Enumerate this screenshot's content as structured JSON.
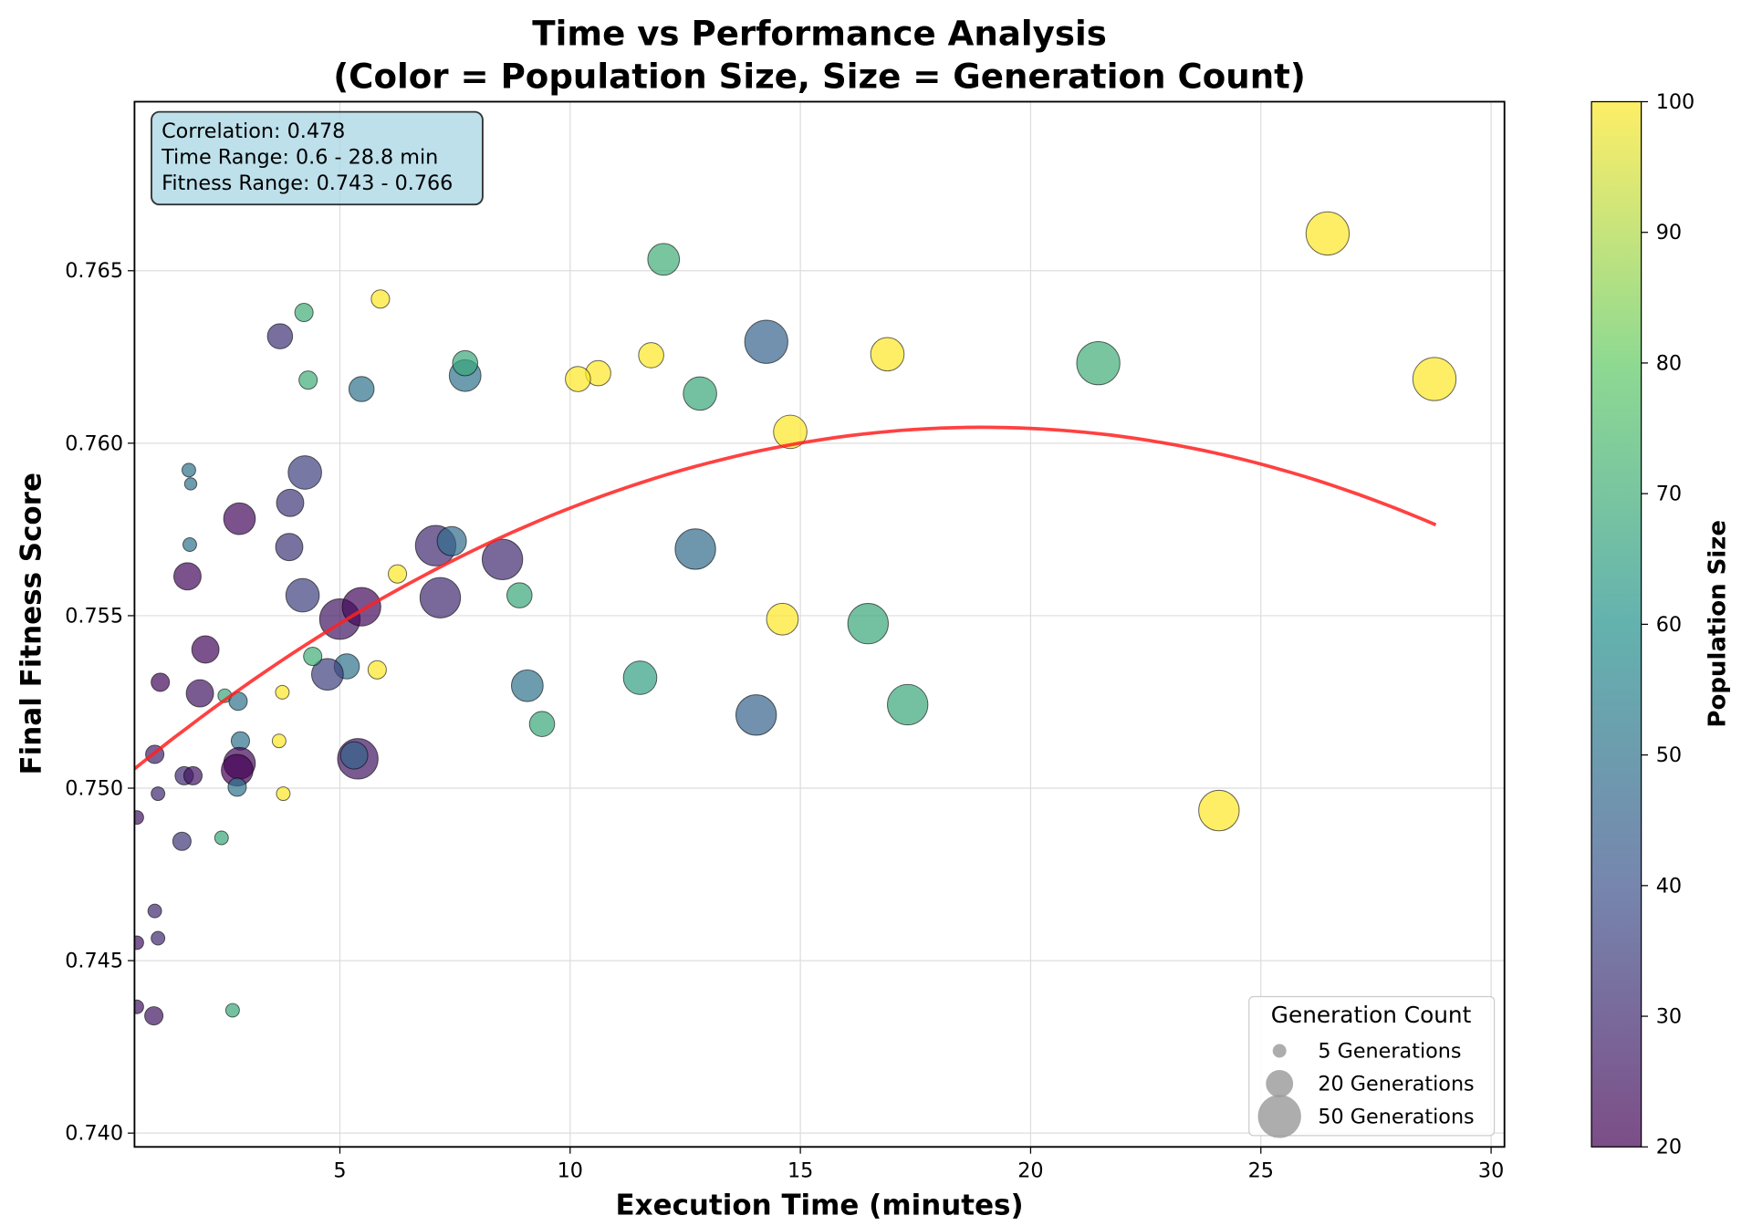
{
  "chart_data": {
    "type": "scatter",
    "title": "Time vs Performance Analysis",
    "subtitle": "(Color = Population Size, Size = Generation Count)",
    "xlabel": "Execution Time (minutes)",
    "ylabel": "Final Fitness Score",
    "xlim": [
      0.54,
      30.29
    ],
    "ylim": [
      0.7396,
      0.7699
    ],
    "xticks": [
      5,
      10,
      15,
      20,
      25,
      30
    ],
    "xtick_labels": [
      "5",
      "10",
      "15",
      "20",
      "25",
      "30"
    ],
    "yticks": [
      0.74,
      0.745,
      0.75,
      0.755,
      0.76,
      0.765
    ],
    "ytick_labels": [
      "0.740",
      "0.745",
      "0.750",
      "0.755",
      "0.760",
      "0.765"
    ],
    "grid": true,
    "annotation": [
      "Correlation: 0.478",
      "Time Range: 0.6 - 28.8 min",
      "Fitness Range: 0.743 - 0.766"
    ],
    "trend": {
      "type": "quadratic",
      "a": 0.74997,
      "b": 0.001107,
      "c": -2.92e-05,
      "x_range": [
        0.54,
        28.8
      ],
      "color": "#ff2020"
    },
    "colorbar": {
      "label": "Population Size",
      "range": [
        20,
        100
      ],
      "ticks": [
        20,
        30,
        40,
        50,
        60,
        70,
        80,
        90,
        100
      ],
      "tick_labels": [
        "20",
        "30",
        "40",
        "50",
        "60",
        "70",
        "80",
        "90",
        "100"
      ],
      "colormap": "viridis"
    },
    "legend": {
      "title": "Generation Count",
      "placement": "lower-right",
      "entries": [
        {
          "label": "5 Generations",
          "gen": 5
        },
        {
          "label": "20 Generations",
          "gen": 20
        },
        {
          "label": "50 Generations",
          "gen": 50
        }
      ]
    },
    "points": [
      {
        "x": 26.45,
        "y": 0.76608,
        "pop": 100,
        "gen": 50
      },
      {
        "x": 12.03,
        "y": 0.76533,
        "pop": 70,
        "gen": 27
      },
      {
        "x": 14.26,
        "y": 0.76294,
        "pop": 45,
        "gen": 50
      },
      {
        "x": 16.89,
        "y": 0.76258,
        "pop": 100,
        "gen": 30
      },
      {
        "x": 21.47,
        "y": 0.76232,
        "pop": 70,
        "gen": 50
      },
      {
        "x": 28.77,
        "y": 0.76186,
        "pop": 100,
        "gen": 50
      },
      {
        "x": 12.82,
        "y": 0.76144,
        "pop": 68,
        "gen": 30
      },
      {
        "x": 14.78,
        "y": 0.76033,
        "pop": 100,
        "gen": 30
      },
      {
        "x": 10.61,
        "y": 0.76203,
        "pop": 100,
        "gen": 17
      },
      {
        "x": 10.17,
        "y": 0.76186,
        "pop": 100,
        "gen": 17
      },
      {
        "x": 11.76,
        "y": 0.76255,
        "pop": 100,
        "gen": 17
      },
      {
        "x": 7.72,
        "y": 0.76196,
        "pop": 50,
        "gen": 27
      },
      {
        "x": 7.72,
        "y": 0.76232,
        "pop": 68,
        "gen": 17
      },
      {
        "x": 5.47,
        "y": 0.76157,
        "pop": 50,
        "gen": 17
      },
      {
        "x": 3.7,
        "y": 0.7631,
        "pop": 32,
        "gen": 17
      },
      {
        "x": 4.22,
        "y": 0.76379,
        "pop": 70,
        "gen": 9
      },
      {
        "x": 4.31,
        "y": 0.76183,
        "pop": 70,
        "gen": 9
      },
      {
        "x": 5.88,
        "y": 0.76418,
        "pop": 100,
        "gen": 9
      },
      {
        "x": 12.72,
        "y": 0.75693,
        "pop": 48,
        "gen": 44
      },
      {
        "x": 16.47,
        "y": 0.75477,
        "pop": 68,
        "gen": 44
      },
      {
        "x": 17.33,
        "y": 0.75242,
        "pop": 68,
        "gen": 44
      },
      {
        "x": 24.09,
        "y": 0.74935,
        "pop": 100,
        "gen": 44
      },
      {
        "x": 14.61,
        "y": 0.7549,
        "pop": 100,
        "gen": 27
      },
      {
        "x": 14.04,
        "y": 0.75212,
        "pop": 45,
        "gen": 44
      },
      {
        "x": 11.52,
        "y": 0.7532,
        "pop": 65,
        "gen": 30
      },
      {
        "x": 9.07,
        "y": 0.75297,
        "pop": 50,
        "gen": 27
      },
      {
        "x": 9.39,
        "y": 0.75186,
        "pop": 68,
        "gen": 17
      },
      {
        "x": 8.9,
        "y": 0.75559,
        "pop": 68,
        "gen": 17
      },
      {
        "x": 8.53,
        "y": 0.75663,
        "pop": 30,
        "gen": 44
      },
      {
        "x": 7.08,
        "y": 0.75703,
        "pop": 30,
        "gen": 44
      },
      {
        "x": 7.43,
        "y": 0.75716,
        "pop": 48,
        "gen": 23
      },
      {
        "x": 7.18,
        "y": 0.75552,
        "pop": 30,
        "gen": 44
      },
      {
        "x": 6.25,
        "y": 0.75621,
        "pop": 100,
        "gen": 9
      },
      {
        "x": 5.81,
        "y": 0.75343,
        "pop": 100,
        "gen": 9
      },
      {
        "x": 5.0,
        "y": 0.7549,
        "pop": 25,
        "gen": 44
      },
      {
        "x": 5.47,
        "y": 0.75526,
        "pop": 22,
        "gen": 40
      },
      {
        "x": 5.39,
        "y": 0.75085,
        "pop": 25,
        "gen": 44
      },
      {
        "x": 5.31,
        "y": 0.75095,
        "pop": 45,
        "gen": 20
      },
      {
        "x": 5.15,
        "y": 0.75353,
        "pop": 50,
        "gen": 17
      },
      {
        "x": 4.73,
        "y": 0.7533,
        "pop": 35,
        "gen": 27
      },
      {
        "x": 4.41,
        "y": 0.75382,
        "pop": 70,
        "gen": 9
      },
      {
        "x": 4.19,
        "y": 0.75559,
        "pop": 35,
        "gen": 30
      },
      {
        "x": 4.24,
        "y": 0.75915,
        "pop": 35,
        "gen": 30
      },
      {
        "x": 3.92,
        "y": 0.75827,
        "pop": 33,
        "gen": 20
      },
      {
        "x": 3.9,
        "y": 0.75699,
        "pop": 33,
        "gen": 20
      },
      {
        "x": 2.82,
        "y": 0.75781,
        "pop": 22,
        "gen": 27
      },
      {
        "x": 1.69,
        "y": 0.75614,
        "pop": 22,
        "gen": 20
      },
      {
        "x": 2.08,
        "y": 0.75402,
        "pop": 22,
        "gen": 20
      },
      {
        "x": 1.96,
        "y": 0.75275,
        "pop": 25,
        "gen": 20
      },
      {
        "x": 1.1,
        "y": 0.75307,
        "pop": 22,
        "gen": 9
      },
      {
        "x": 1.72,
        "y": 0.75922,
        "pop": 50,
        "gen": 5
      },
      {
        "x": 1.76,
        "y": 0.75882,
        "pop": 50,
        "gen": 4
      },
      {
        "x": 1.74,
        "y": 0.75706,
        "pop": 50,
        "gen": 5
      },
      {
        "x": 2.5,
        "y": 0.75268,
        "pop": 68,
        "gen": 5
      },
      {
        "x": 2.79,
        "y": 0.75252,
        "pop": 50,
        "gen": 9
      },
      {
        "x": 3.75,
        "y": 0.75278,
        "pop": 100,
        "gen": 5
      },
      {
        "x": 3.68,
        "y": 0.75137,
        "pop": 100,
        "gen": 5
      },
      {
        "x": 3.77,
        "y": 0.74984,
        "pop": 100,
        "gen": 5
      },
      {
        "x": 2.84,
        "y": 0.75137,
        "pop": 50,
        "gen": 9
      },
      {
        "x": 2.82,
        "y": 0.75072,
        "pop": 22,
        "gen": 27
      },
      {
        "x": 2.77,
        "y": 0.75052,
        "pop": 20,
        "gen": 27
      },
      {
        "x": 2.77,
        "y": 0.75003,
        "pop": 50,
        "gen": 9
      },
      {
        "x": 0.98,
        "y": 0.75098,
        "pop": 28,
        "gen": 9
      },
      {
        "x": 1.62,
        "y": 0.75036,
        "pop": 30,
        "gen": 9
      },
      {
        "x": 1.81,
        "y": 0.75036,
        "pop": 25,
        "gen": 9
      },
      {
        "x": 1.05,
        "y": 0.74984,
        "pop": 30,
        "gen": 5
      },
      {
        "x": 0.59,
        "y": 0.74915,
        "pop": 25,
        "gen": 5
      },
      {
        "x": 1.57,
        "y": 0.74846,
        "pop": 33,
        "gen": 9
      },
      {
        "x": 2.43,
        "y": 0.74856,
        "pop": 68,
        "gen": 5
      },
      {
        "x": 0.98,
        "y": 0.74644,
        "pop": 30,
        "gen": 5
      },
      {
        "x": 1.05,
        "y": 0.74565,
        "pop": 30,
        "gen": 5
      },
      {
        "x": 0.59,
        "y": 0.74552,
        "pop": 25,
        "gen": 5
      },
      {
        "x": 0.59,
        "y": 0.74366,
        "pop": 25,
        "gen": 5
      },
      {
        "x": 0.96,
        "y": 0.7434,
        "pop": 25,
        "gen": 9
      },
      {
        "x": 2.67,
        "y": 0.74356,
        "pop": 68,
        "gen": 5
      }
    ]
  }
}
